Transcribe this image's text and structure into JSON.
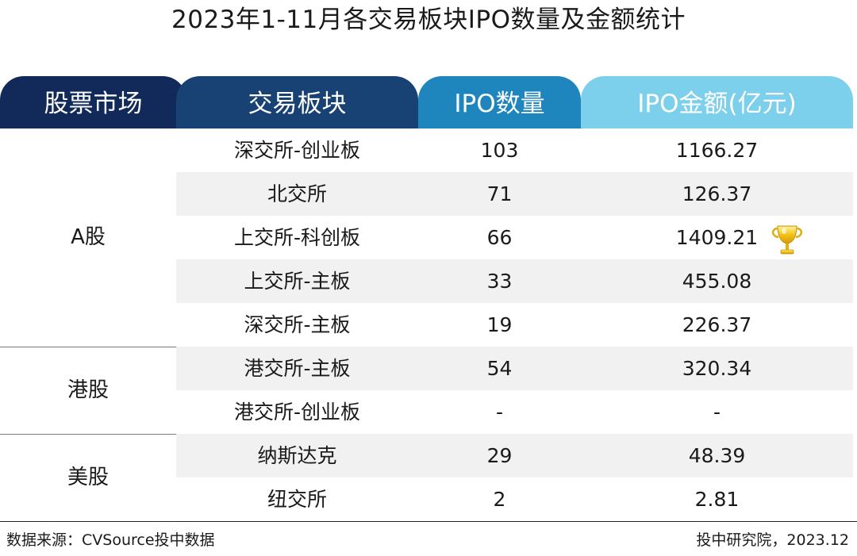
{
  "chart_data": {
    "type": "table",
    "title": "2023年1-11月各交易板块IPO数量及金额统计",
    "columns": [
      "股票市场",
      "交易板块",
      "IPO数量",
      "IPO金额(亿元)"
    ],
    "groups": [
      {
        "market": "A股",
        "rows": [
          {
            "board": "深交所-创业板",
            "count": "103",
            "amount": "1166.27"
          },
          {
            "board": "北交所",
            "count": "71",
            "amount": "126.37"
          },
          {
            "board": "上交所-科创板",
            "count": "66",
            "amount": "1409.21"
          },
          {
            "board": "上交所-主板",
            "count": "33",
            "amount": "455.08"
          },
          {
            "board": "深交所-主板",
            "count": "19",
            "amount": "226.37"
          }
        ]
      },
      {
        "market": "港股",
        "rows": [
          {
            "board": "港交所-主板",
            "count": "54",
            "amount": "320.34"
          },
          {
            "board": "港交所-创业板",
            "count": "-",
            "amount": "-"
          }
        ]
      },
      {
        "market": "美股",
        "rows": [
          {
            "board": "纳斯达克",
            "count": "29",
            "amount": "48.39"
          },
          {
            "board": "纽交所",
            "count": "2",
            "amount": "2.81"
          }
        ]
      }
    ],
    "highlight": {
      "board": "上交所-科创板",
      "icon": "trophy-icon"
    }
  },
  "colors": {
    "header_market": "#122a5a",
    "header_board": "#174273",
    "header_count": "#1f86bd",
    "header_amount": "#7dd0ec",
    "row_shade": "#f1f1f1"
  },
  "footer": {
    "source": "数据来源：CVSource投中数据",
    "credit": "投中研究院，2023.12"
  }
}
